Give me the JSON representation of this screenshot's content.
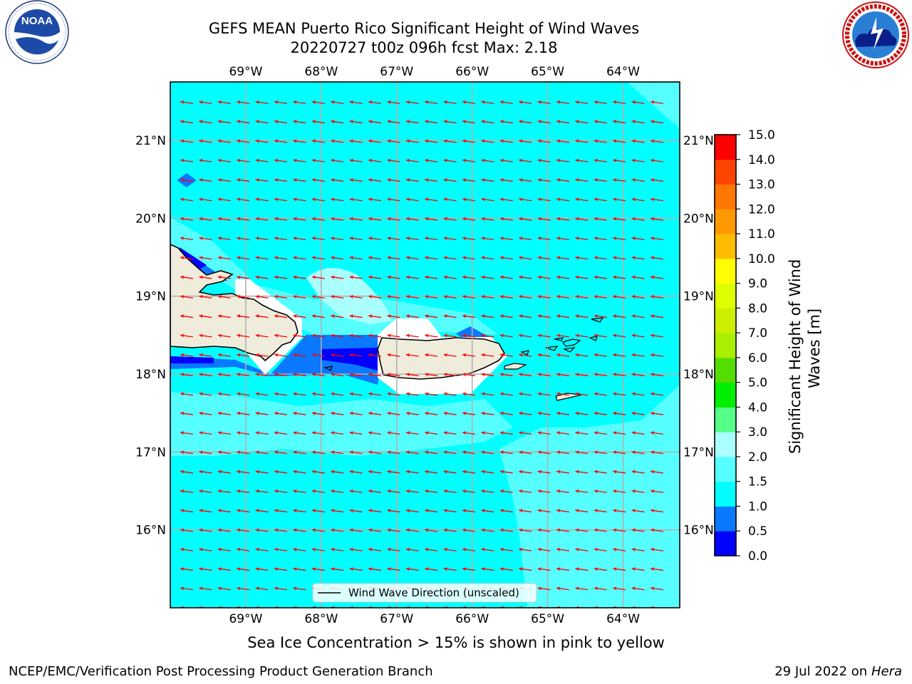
{
  "title_line1": "GEFS MEAN Puerto Rico Significant Height of Wind Waves",
  "title_line2": "20220727 t00z 096h fcst   Max: 2.18",
  "ice_note": "Sea Ice Concentration > 15% is shown in pink to yellow",
  "footer_left": "NCEP/EMC/Verification Post Processing Product Generation Branch",
  "footer_date": "29 Jul 2022 on",
  "footer_system": "Hera",
  "legend_label": "Wind Wave Direction (unscaled)",
  "map": {
    "lon_range": [
      -70.0,
      -63.25
    ],
    "lat_range": [
      15.0,
      21.75
    ],
    "lon_ticks": [
      -69,
      -68,
      -67,
      -66,
      -65,
      -64
    ],
    "lon_tick_labels": [
      "69°W",
      "68°W",
      "67°W",
      "66°W",
      "65°W",
      "64°W"
    ],
    "lat_ticks": [
      16,
      17,
      18,
      19,
      20,
      21
    ],
    "lat_tick_labels": [
      "16°N",
      "17°N",
      "18°N",
      "19°N",
      "20°N",
      "21°N"
    ],
    "ocean_color": "#00ffff",
    "arrow_color": "#ff0000",
    "arrow_direction": "west-southwest",
    "land_color": "#efecdc",
    "grid": true
  },
  "colorbar": {
    "label": "Significant Height of Wind Waves [m]",
    "ticks": [
      "15.0",
      "14.0",
      "13.0",
      "12.0",
      "11.0",
      "10.0",
      "9.0",
      "8.0",
      "7.0",
      "6.0",
      "5.0",
      "4.0",
      "3.0",
      "2.0",
      "1.5",
      "1.0",
      "0.5",
      "0.0"
    ],
    "bins": [
      {
        "from": 0.0,
        "to": 0.5,
        "color": "#0000ff"
      },
      {
        "from": 0.5,
        "to": 1.0,
        "color": "#0a78ff"
      },
      {
        "from": 1.0,
        "to": 1.5,
        "color": "#00ffff"
      },
      {
        "from": 1.5,
        "to": 2.0,
        "color": "#55ffff"
      },
      {
        "from": 2.0,
        "to": 3.0,
        "color": "#aaffff"
      },
      {
        "from": 3.0,
        "to": 4.0,
        "color": "#55ff88"
      },
      {
        "from": 4.0,
        "to": 5.0,
        "color": "#00ee00"
      },
      {
        "from": 5.0,
        "to": 6.0,
        "color": "#55dd00"
      },
      {
        "from": 6.0,
        "to": 7.0,
        "color": "#aaee00"
      },
      {
        "from": 7.0,
        "to": 8.0,
        "color": "#ccee00"
      },
      {
        "from": 8.0,
        "to": 9.0,
        "color": "#ddff00"
      },
      {
        "from": 9.0,
        "to": 10.0,
        "color": "#ffff00"
      },
      {
        "from": 10.0,
        "to": 11.0,
        "color": "#ffbb00"
      },
      {
        "from": 11.0,
        "to": 12.0,
        "color": "#ff9900"
      },
      {
        "from": 12.0,
        "to": 13.0,
        "color": "#ff7700"
      },
      {
        "from": 13.0,
        "to": 14.0,
        "color": "#ff4400"
      },
      {
        "from": 14.0,
        "to": 15.0,
        "color": "#ff0000"
      }
    ]
  },
  "logos": {
    "noaa": {
      "text": "NOAA",
      "ring_text": "NATIONAL OCEANIC AND ATMOSPHERIC ADMINISTRATION · U.S. DEPARTMENT OF COMMERCE"
    },
    "nws": {
      "ring_text": "NATIONAL WEATHER SERVICE"
    }
  }
}
